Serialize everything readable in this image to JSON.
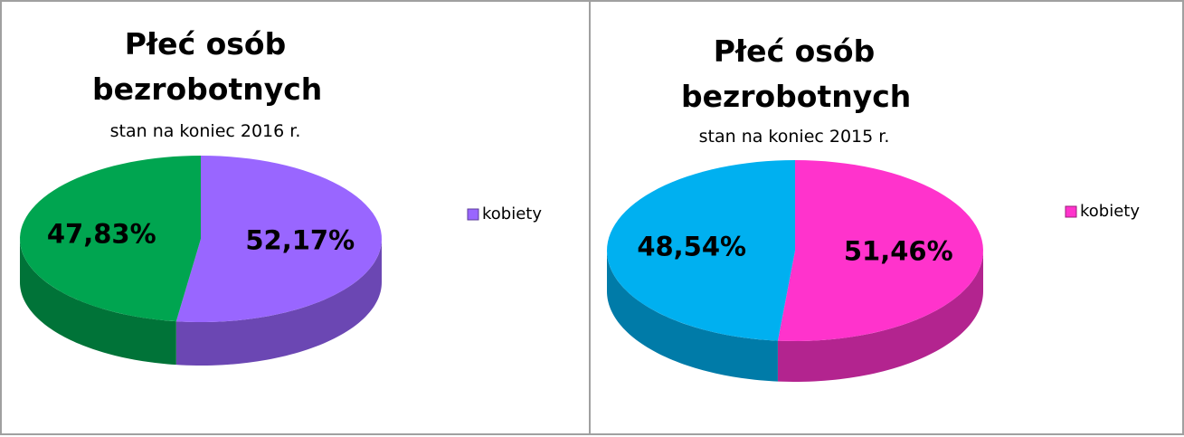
{
  "chart_data": [
    {
      "type": "pie",
      "title": "Płeć osób\nbezrobotnych",
      "subtitle": "stan na koniec 2016 r.",
      "categories": [
        "kobiety",
        null
      ],
      "values": [
        52.17,
        47.83
      ],
      "value_labels": [
        "52,17%",
        "47,83%"
      ],
      "colors": [
        "#9966ff",
        "#00a550"
      ],
      "legend": "right"
    },
    {
      "type": "pie",
      "title": "Płeć osób\nbezrobotnych",
      "subtitle": "stan na koniec 2015 r.",
      "categories": [
        "kobiety",
        null
      ],
      "values": [
        51.46,
        48.54
      ],
      "value_labels": [
        "51,46%",
        "48,54%"
      ],
      "colors": [
        "#ff33cc",
        "#00b0f0"
      ],
      "legend": "right"
    }
  ]
}
